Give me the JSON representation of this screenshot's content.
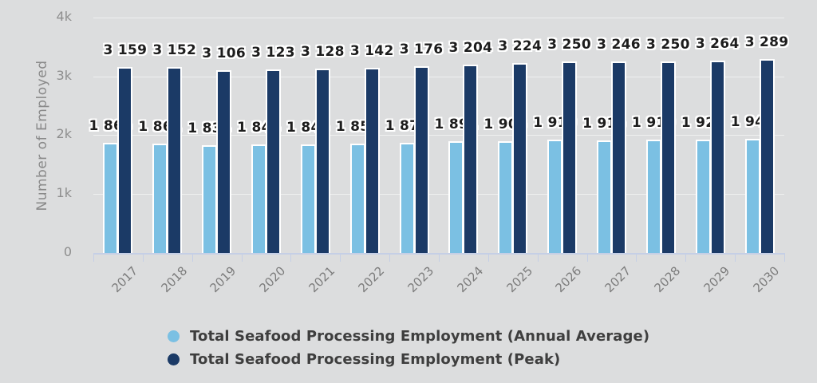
{
  "colors": {
    "background": "#dcddde",
    "axis": "#c5cfe6",
    "grid_line": "#eceded",
    "tick_label": "#8e8e8e",
    "year_label": "#7c7c7c",
    "value_label": "#1d1d1d",
    "legend_text": "#3e3e3e",
    "annual_average": "#7bc0e3",
    "peak": "#1b3a66"
  },
  "chart_data": {
    "type": "bar",
    "title": "",
    "xlabel": "",
    "ylabel": "Number of Employed",
    "ylim": [
      0,
      4000
    ],
    "y_ticks": [
      "0",
      "1k",
      "2k",
      "3k",
      "4k"
    ],
    "grid": true,
    "legend_position": "bottom",
    "categories": [
      "2017",
      "2018",
      "2019",
      "2020",
      "2021",
      "2022",
      "2023",
      "2024",
      "2025",
      "2026",
      "2027",
      "2028",
      "2029",
      "2030"
    ],
    "series": [
      {
        "name": "Total Seafood Processing Employment (Annual Average)",
        "color": "#7bc0e3",
        "values": [
          1865,
          1861,
          1834,
          1844,
          1846,
          1855,
          1875,
          1891,
          1903,
          1919,
          1916,
          1919,
          1927,
          1942
        ],
        "labels": [
          "1 865",
          "1 861",
          "1 834",
          "1 844",
          "1 846",
          "1 855",
          "1 875",
          "1 891",
          "1 903",
          "1 919",
          "1 916",
          "1 919",
          "1 927",
          "1 942"
        ]
      },
      {
        "name": "Total Seafood Processing Employment (Peak)",
        "color": "#1b3a66",
        "values": [
          3159,
          3152,
          3106,
          3123,
          3128,
          3142,
          3176,
          3204,
          3224,
          3250,
          3246,
          3250,
          3264,
          3289
        ],
        "labels": [
          "3 159",
          "3 152",
          "3 106",
          "3 123",
          "3 128",
          "3 142",
          "3 176",
          "3 204",
          "3 224",
          "3 250",
          "3 246",
          "3 250",
          "3 264",
          "3 289"
        ]
      }
    ]
  }
}
